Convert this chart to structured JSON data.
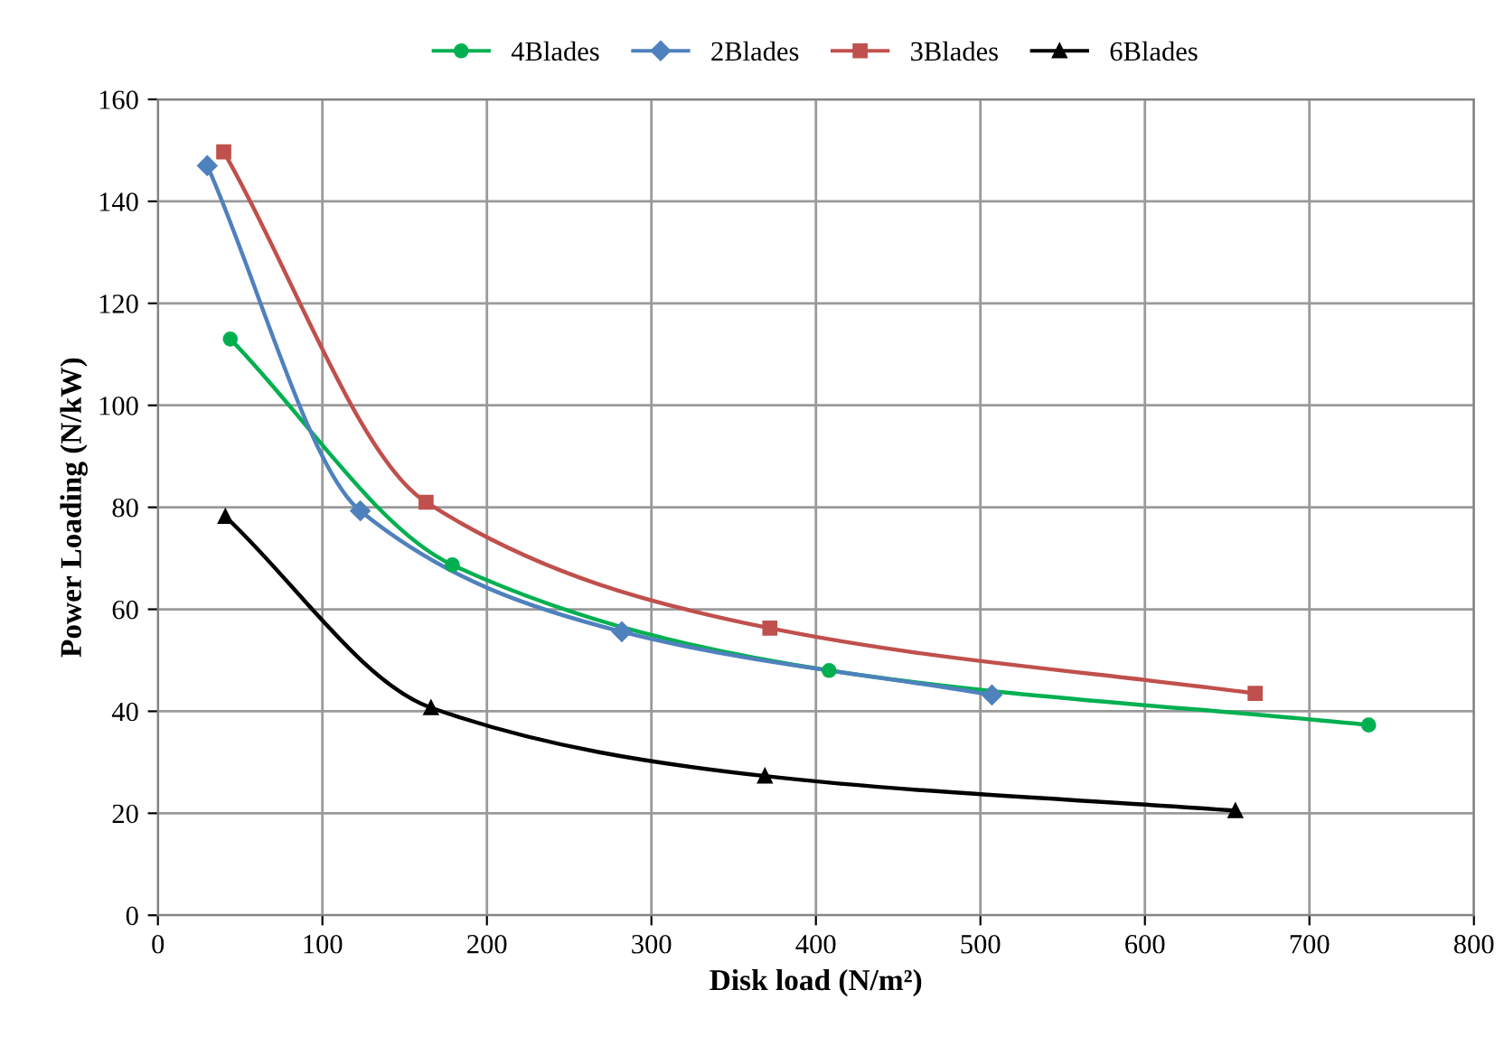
{
  "chart_data": {
    "type": "line",
    "xlabel": "Disk load (N/m²)",
    "ylabel": "Power Loading (N/kW)",
    "xlim": [
      0,
      800
    ],
    "xticks": [
      0,
      100,
      200,
      300,
      400,
      500,
      600,
      700,
      800
    ],
    "ylim": [
      0,
      160
    ],
    "yticks": [
      0,
      20,
      40,
      60,
      80,
      100,
      120,
      140,
      160
    ],
    "grid": true,
    "legend": "top",
    "series": [
      {
        "name": "4Blades",
        "color": "#00b050",
        "marker": "circle",
        "x": [
          44,
          179,
          408,
          736
        ],
        "values": [
          113,
          68.7,
          48,
          37.3
        ]
      },
      {
        "name": "2Blades",
        "color": "#4f81bd",
        "marker": "diamond",
        "x": [
          30,
          123,
          282,
          507
        ],
        "values": [
          147,
          79.3,
          55.6,
          43.2
        ]
      },
      {
        "name": "3Blades",
        "color": "#c0504d",
        "marker": "square",
        "x": [
          40,
          163,
          372,
          667
        ],
        "values": [
          149.7,
          81,
          56.3,
          43.5
        ]
      },
      {
        "name": "6Blades",
        "color": "#000000",
        "marker": "triangle",
        "x": [
          41,
          166,
          369,
          655
        ],
        "values": [
          78.2,
          40.7,
          27.3,
          20.5
        ]
      }
    ]
  }
}
